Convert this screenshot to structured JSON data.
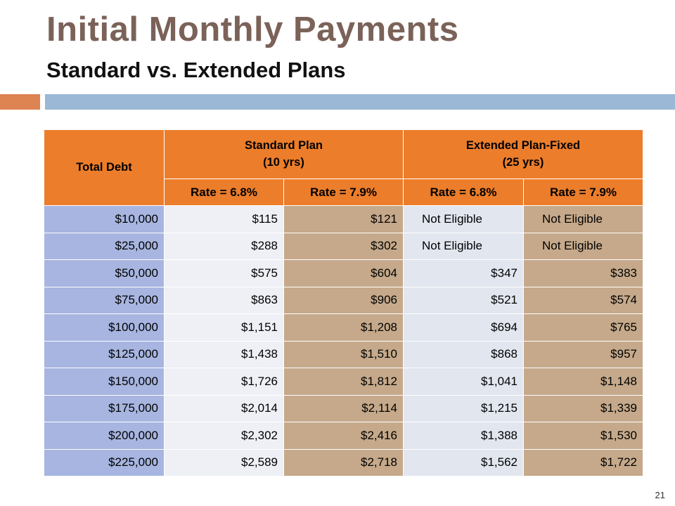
{
  "slide": {
    "title": "Initial Monthly Payments",
    "subtitle": "Standard vs. Extended Plans",
    "page_number": "21"
  },
  "table": {
    "header": {
      "total_debt": "Total Debt",
      "standard": {
        "name": "Standard Plan",
        "term": "(10 yrs)"
      },
      "extended": {
        "name": "Extended Plan-Fixed",
        "term": "(25 yrs)"
      },
      "rates": [
        "Rate = 6.8%",
        "Rate = 7.9%",
        "Rate = 6.8%",
        "Rate = 7.9%"
      ]
    },
    "rows": [
      [
        "$10,000",
        "$115",
        "$121",
        "Not Eligible",
        "Not Eligible"
      ],
      [
        "$25,000",
        "$288",
        "$302",
        "Not Eligible",
        "Not Eligible"
      ],
      [
        "$50,000",
        "$575",
        "$604",
        "$347",
        "$383"
      ],
      [
        "$75,000",
        "$863",
        "$906",
        "$521",
        "$574"
      ],
      [
        "$100,000",
        "$1,151",
        "$1,208",
        "$694",
        "$765"
      ],
      [
        "$125,000",
        "$1,438",
        "$1,510",
        "$868",
        "$957"
      ],
      [
        "$150,000",
        "$1,726",
        "$1,812",
        "$1,041",
        "$1,148"
      ],
      [
        "$175,000",
        "$2,014",
        "$2,114",
        "$1,215",
        "$1,339"
      ],
      [
        "$200,000",
        "$2,302",
        "$2,416",
        "$1,388",
        "$1,530"
      ],
      [
        "$225,000",
        "$2,589",
        "$2,718",
        "$1,562",
        "$1,722"
      ]
    ]
  },
  "colors": {
    "title": "#7b6259",
    "header_orange": "#ec7d2b",
    "accent_bar_orange": "#dd8452",
    "accent_bar_blue": "#9bb8d6",
    "debt_column": "#a7b5e0",
    "rate_7_9_columns": "#c5a98a"
  }
}
